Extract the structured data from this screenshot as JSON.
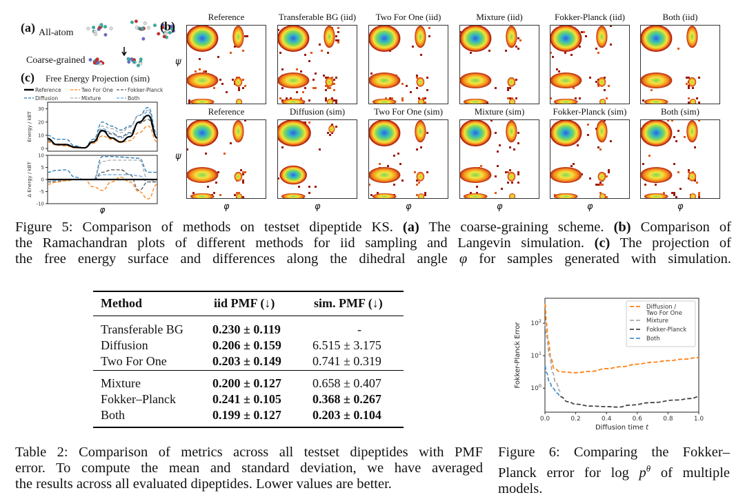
{
  "figure5": {
    "panel_a": {
      "label": "(a)",
      "all_atom": "All-atom",
      "coarse": "Coarse-grained"
    },
    "panel_b": {
      "label": "(b)",
      "psi": "ψ",
      "phi": "φ",
      "row1_titles": [
        "Reference",
        "Transferable BG (iid)",
        "Two For One (iid)",
        "Mixture (iid)",
        "Fokker-Planck (iid)",
        "Both (iid)"
      ],
      "row2_titles": [
        "Reference",
        "Diffusion (sim)",
        "Two For One (sim)",
        "Mixture (sim)",
        "Fokker-Planck (sim)",
        "Both (sim)"
      ]
    },
    "panel_c": {
      "label": "(c)",
      "title": "Free Energy Projection (sim)"
    },
    "caption": {
      "l1a": "Figure 5: Comparison of methods on testset dipeptide KS. ",
      "l1b": "(a)",
      "l1c": " The coarse-graining scheme. ",
      "l1d": "(b)",
      "l1e": " Comparison of",
      "l2a": "the Ramachandran plots of different methods for iid sampling and Langevin simulation. ",
      "l2b": "(c)",
      "l2c": " The projection of",
      "l3a": "the free energy surface and differences along the dihedral angle ",
      "l3b": "φ",
      "l3c": " for samples generated with simulation."
    }
  },
  "table2": {
    "headers": [
      "Method",
      "iid PMF (↓)",
      "sim. PMF (↓)"
    ],
    "rows": [
      {
        "method": "Transferable BG",
        "iid": "0.230 ± 0.119",
        "iid_bold": true,
        "sim": "-",
        "sim_bold": false
      },
      {
        "method": "Diffusion",
        "iid": "0.206 ± 0.159",
        "iid_bold": true,
        "sim": "6.515 ± 3.175",
        "sim_bold": false
      },
      {
        "method": "Two For One",
        "iid": "0.203 ± 0.149",
        "iid_bold": true,
        "sim": "0.741 ± 0.319",
        "sim_bold": false
      },
      {
        "method": "Mixture",
        "iid": "0.200 ± 0.127",
        "iid_bold": true,
        "sim": "0.658 ± 0.407",
        "sim_bold": false
      },
      {
        "method": "Fokker–Planck",
        "iid": "0.241 ± 0.105",
        "iid_bold": true,
        "sim": "0.368 ± 0.267",
        "sim_bold": true
      },
      {
        "method": "Both",
        "iid": "0.199 ± 0.127",
        "iid_bold": true,
        "sim": "0.203 ± 0.104",
        "sim_bold": true
      }
    ],
    "caption_lines": [
      "Table 2: Comparison of metrics across all testset dipeptides with PMF",
      "error. To compute the mean and standard deviation, we have averaged",
      "the results across all evaluated dipeptides. Lower values are better."
    ]
  },
  "figure6": {
    "caption": {
      "l1": "Figure 6: Comparing the Fokker–",
      "l2a": "Planck error for log ",
      "l2b": "p",
      "l2c": "θ",
      "l2d": " of multiple",
      "l3": "models."
    }
  },
  "chart_data": [
    {
      "type": "line",
      "title": "Free Energy Projection (sim)",
      "xlabel": "φ",
      "ylabel": "Energy / k_BT",
      "ylim": [
        -2,
        35
      ],
      "yticks": [
        0,
        10,
        20,
        30
      ],
      "legend": "top",
      "series": [
        {
          "name": "Reference",
          "color": "#000000",
          "style": "solid",
          "values": [
            7.5,
            3,
            3,
            1,
            0.5,
            5,
            13.5,
            8,
            5,
            9,
            20,
            25,
            8
          ]
        },
        {
          "name": "Two For One",
          "color": "#ff7f0e",
          "style": "dashed",
          "values": [
            5,
            2.5,
            2,
            0.5,
            0.5,
            4,
            9.5,
            7,
            4.5,
            6,
            12,
            17,
            5
          ]
        },
        {
          "name": "Fokker-Planck",
          "color": "#555555",
          "style": "dashed",
          "values": [
            6,
            3,
            2.5,
            0.5,
            0.5,
            5,
            14,
            11,
            9,
            12,
            19,
            22,
            8
          ]
        },
        {
          "name": "Diffusion",
          "color": "#1f77b4",
          "style": "dashed",
          "values": [
            10,
            7,
            7,
            2,
            0.5,
            7,
            20,
            17,
            14,
            17,
            25,
            31,
            11
          ]
        },
        {
          "name": "Mixture",
          "color": "#aaaaaa",
          "style": "dashed",
          "values": [
            7,
            3.5,
            3,
            0.5,
            0.5,
            6,
            17,
            15,
            12,
            16,
            25,
            29,
            9
          ]
        },
        {
          "name": "Both",
          "color": "#5fa2dd",
          "style": "dashed",
          "values": [
            6,
            3,
            3,
            0.5,
            0.5,
            5,
            15,
            12,
            8,
            11,
            20,
            28,
            8
          ]
        }
      ]
    },
    {
      "type": "line",
      "xlabel": "φ",
      "ylabel": "Δ Energy / k_BT",
      "ylim": [
        -10,
        10
      ],
      "yticks": [
        -10,
        -5,
        0,
        5,
        10
      ],
      "series": [
        {
          "name": "Reference",
          "color": "#000000",
          "style": "solid",
          "values": [
            0,
            0,
            0,
            0,
            0,
            0,
            0,
            0,
            0,
            0,
            0,
            0,
            0
          ]
        },
        {
          "name": "Two For One",
          "color": "#ff7f0e",
          "style": "dashed",
          "values": [
            -2,
            -1,
            -0.5,
            0,
            0,
            -3,
            -4.5,
            -1,
            1,
            -1,
            -5,
            -8,
            -2
          ]
        },
        {
          "name": "Fokker-Planck",
          "color": "#555555",
          "style": "dashed",
          "values": [
            -1,
            -1,
            -0.5,
            0,
            0,
            0,
            3,
            4,
            4,
            2,
            -4.5,
            -1,
            -1
          ]
        },
        {
          "name": "Diffusion",
          "color": "#1f77b4",
          "style": "dashed",
          "values": [
            3,
            3.8,
            4,
            1,
            0,
            0,
            9.5,
            9.5,
            9.3,
            9,
            8.8,
            3,
            3
          ]
        },
        {
          "name": "Mixture",
          "color": "#aaaaaa",
          "style": "dashed",
          "values": [
            -1,
            -1,
            -0.5,
            0,
            0,
            0,
            7.5,
            8,
            8,
            8,
            8,
            0,
            -1
          ]
        },
        {
          "name": "Both",
          "color": "#5fa2dd",
          "style": "dashed",
          "values": [
            -1,
            -0.5,
            -0.3,
            0,
            0,
            0,
            2,
            2,
            2,
            2,
            1.5,
            -1,
            -1
          ]
        }
      ]
    },
    {
      "type": "line",
      "xlabel": "Diffusion time t",
      "ylabel": "Fokker-Planck Error",
      "xlim": [
        0,
        1
      ],
      "xticks": [
        "0.0",
        "0.2",
        "0.4",
        "0.6",
        "0.8",
        "1.0"
      ],
      "yscale": "log",
      "yticks": [
        "10^0",
        "10^1",
        "10^2"
      ],
      "legend": "top-right",
      "series": [
        {
          "name": "Diffusion / Two For One",
          "color": "#ff7f0e",
          "style": "dashed",
          "points": [
            [
              0,
              400
            ],
            [
              0.01,
              100
            ],
            [
              0.02,
              30
            ],
            [
              0.04,
              8
            ],
            [
              0.06,
              4
            ],
            [
              0.1,
              3.2
            ],
            [
              0.2,
              3
            ],
            [
              0.3,
              3.3
            ],
            [
              0.4,
              4
            ],
            [
              0.5,
              4.6
            ],
            [
              0.6,
              5.5
            ],
            [
              0.7,
              6.3
            ],
            [
              0.8,
              7
            ],
            [
              0.9,
              7.8
            ],
            [
              1.0,
              8.8
            ]
          ]
        },
        {
          "name": "Mixture",
          "color": "#aaaaaa",
          "style": "dashed",
          "points": [
            [
              0,
              100
            ],
            [
              0.01,
              40
            ],
            [
              0.03,
              10
            ],
            [
              0.05,
              3
            ],
            [
              0.07,
              1.5
            ],
            [
              0.1,
              0.8
            ]
          ]
        },
        {
          "name": "Fokker-Planck",
          "color": "#444444",
          "style": "dashed",
          "points": [
            [
              0.1,
              0.55
            ],
            [
              0.15,
              0.38
            ],
            [
              0.2,
              0.32
            ],
            [
              0.3,
              0.28
            ],
            [
              0.4,
              0.27
            ],
            [
              0.48,
              0.26
            ],
            [
              0.55,
              0.3
            ],
            [
              0.7,
              0.36
            ],
            [
              0.85,
              0.43
            ],
            [
              0.95,
              0.48
            ],
            [
              1.0,
              0.55
            ]
          ]
        },
        {
          "name": "Both",
          "color": "#4a90d0",
          "style": "dashed",
          "points": [
            [
              0,
              5
            ],
            [
              0.01,
              3
            ],
            [
              0.03,
              1.5
            ],
            [
              0.05,
              1
            ],
            [
              0.08,
              0.7
            ],
            [
              0.1,
              0.55
            ]
          ]
        }
      ]
    }
  ]
}
